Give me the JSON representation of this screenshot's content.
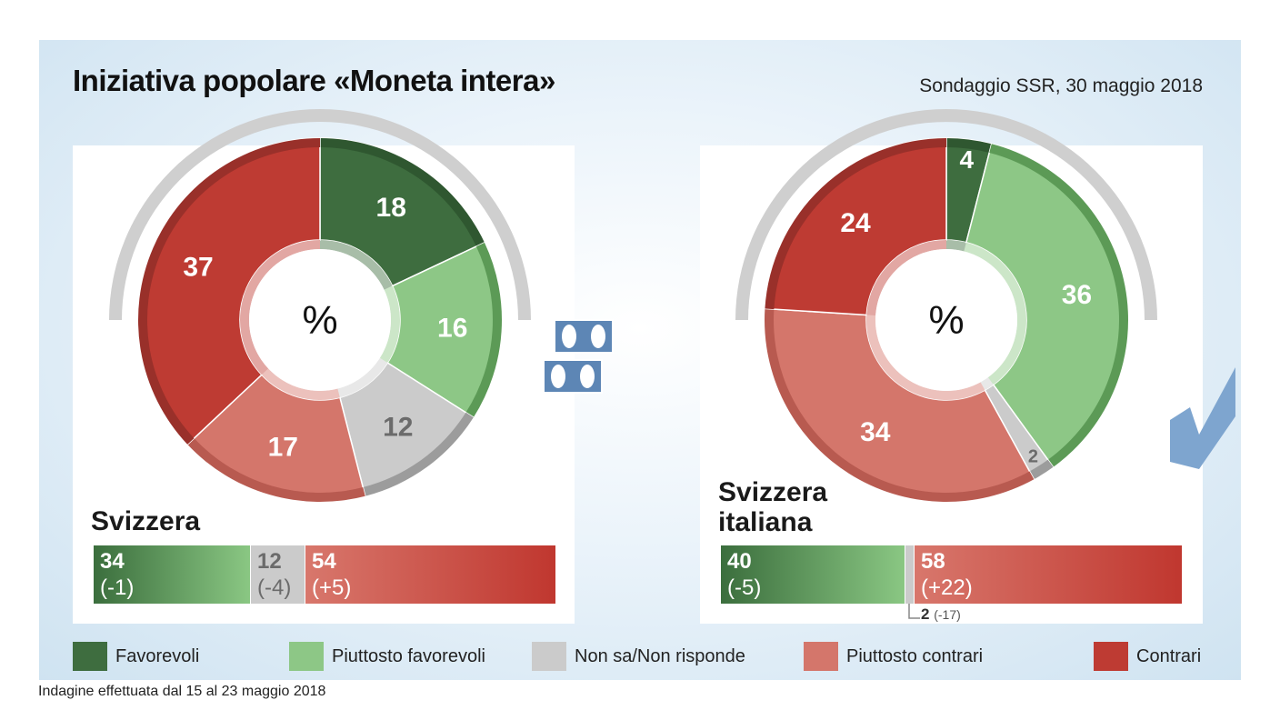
{
  "header": {
    "title": "Iniziativa popolare «Moneta intera»",
    "source": "Sondaggio SSR, 30 maggio 2018"
  },
  "footer": "Indagine effettuata dal 15 al 23 maggio 2018",
  "legend": [
    {
      "label": "Favorevoli",
      "color": "#3e6d3f"
    },
    {
      "label": "Piuttosto favorevoli",
      "color": "#8dc786"
    },
    {
      "label": "Non sa/Non risponde",
      "color": "#cbcbcb"
    },
    {
      "label": "Piuttosto contrari",
      "color": "#d4766b"
    },
    {
      "label": "Contrari",
      "color": "#be3b33"
    }
  ],
  "center_label": "%",
  "chart_data": [
    {
      "type": "pie",
      "region": "Svizzera",
      "categories": [
        "Favorevoli",
        "Piuttosto favorevoli",
        "Non sa/Non risponde",
        "Piuttosto contrari",
        "Contrari"
      ],
      "values": [
        18,
        16,
        12,
        17,
        37
      ],
      "summary": [
        {
          "value": "34",
          "change": "(-1)",
          "kind": "green"
        },
        {
          "value": "12",
          "change": "(-4)",
          "kind": "grey"
        },
        {
          "value": "54",
          "change": "(+5)",
          "kind": "red"
        }
      ]
    },
    {
      "type": "pie",
      "region": "Svizzera italiana",
      "region_lines": [
        "Svizzera",
        "italiana"
      ],
      "categories": [
        "Favorevoli",
        "Piuttosto favorevoli",
        "Non sa/Non risponde",
        "Piuttosto contrari",
        "Contrari"
      ],
      "values": [
        4,
        36,
        2,
        34,
        24
      ],
      "summary": [
        {
          "value": "40",
          "change": "(-5)",
          "kind": "green"
        },
        {
          "value": "2",
          "change": "(-17)",
          "kind": "grey"
        },
        {
          "value": "58",
          "change": "(+22)",
          "kind": "red"
        }
      ]
    }
  ]
}
